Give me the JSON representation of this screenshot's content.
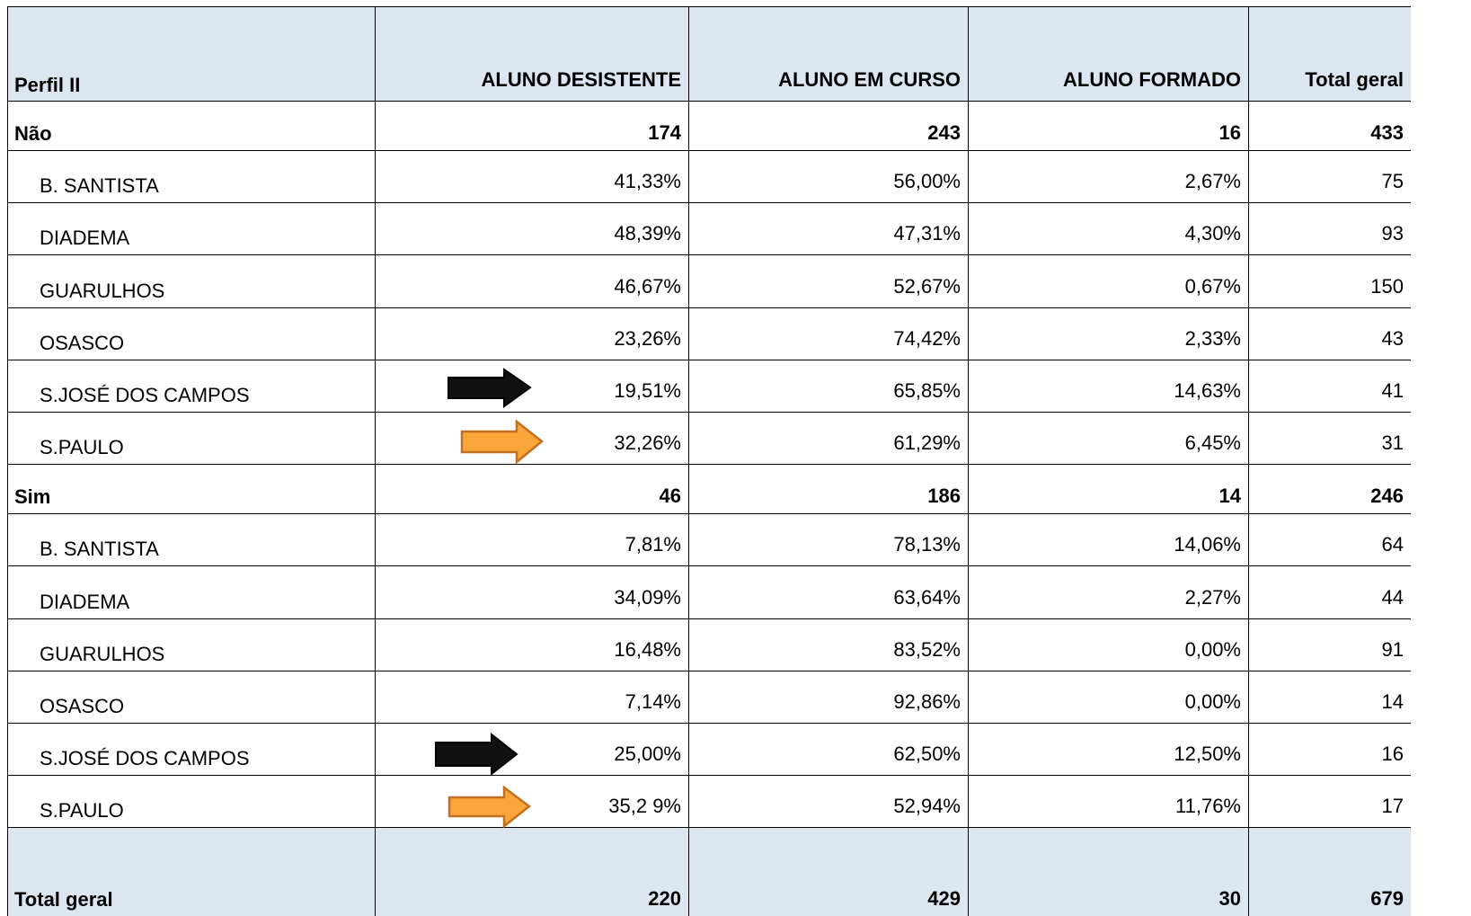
{
  "table": {
    "header": [
      "Perfil II",
      "ALUNO DESISTENTE",
      "ALUNO EM CURSO",
      "ALUNO FORMADO",
      "Total geral"
    ],
    "rows": [
      [
        "Não",
        174,
        243,
        16,
        433
      ],
      [
        "B. SANTISTA",
        "41,33%",
        "56,00%",
        "2,67%",
        75
      ],
      [
        "DIADEMA",
        "48,39%",
        "47,31%",
        "4,30%",
        93
      ],
      [
        "GUARULHOS",
        "46,67%",
        "52,67%",
        "0,67%",
        150
      ],
      [
        "OSASCO",
        "23,26%",
        "74,42%",
        "2,33%",
        43
      ],
      [
        "S.JOSÉ DOS CAMPOS",
        "19,51%",
        "65,85%",
        "14,63%",
        41
      ],
      [
        "S.PAULO",
        "32,26%",
        "61,29%",
        "6,45%",
        31
      ],
      [
        "Sim",
        46,
        186,
        14,
        246
      ],
      [
        "B. SANTISTA",
        "7,81%",
        "78,13%",
        "14,06%",
        64
      ],
      [
        "DIADEMA",
        "34,09%",
        "63,64%",
        "2,27%",
        44
      ],
      [
        "GUARULHOS",
        "16,48%",
        "83,52%",
        "0,00%",
        91
      ],
      [
        "OSASCO",
        "7,14%",
        "92,86%",
        "0,00%",
        14
      ],
      [
        "S.JOSÉ DOS CAMPOS",
        "25,00%",
        "62,50%",
        "12,50%",
        16
      ],
      [
        "S.PAULO",
        "35,2 9%",
        "52,94%",
        "11,76%",
        17
      ]
    ],
    "footer": [
      "Total geral",
      220,
      429,
      30,
      679
    ]
  }
}
